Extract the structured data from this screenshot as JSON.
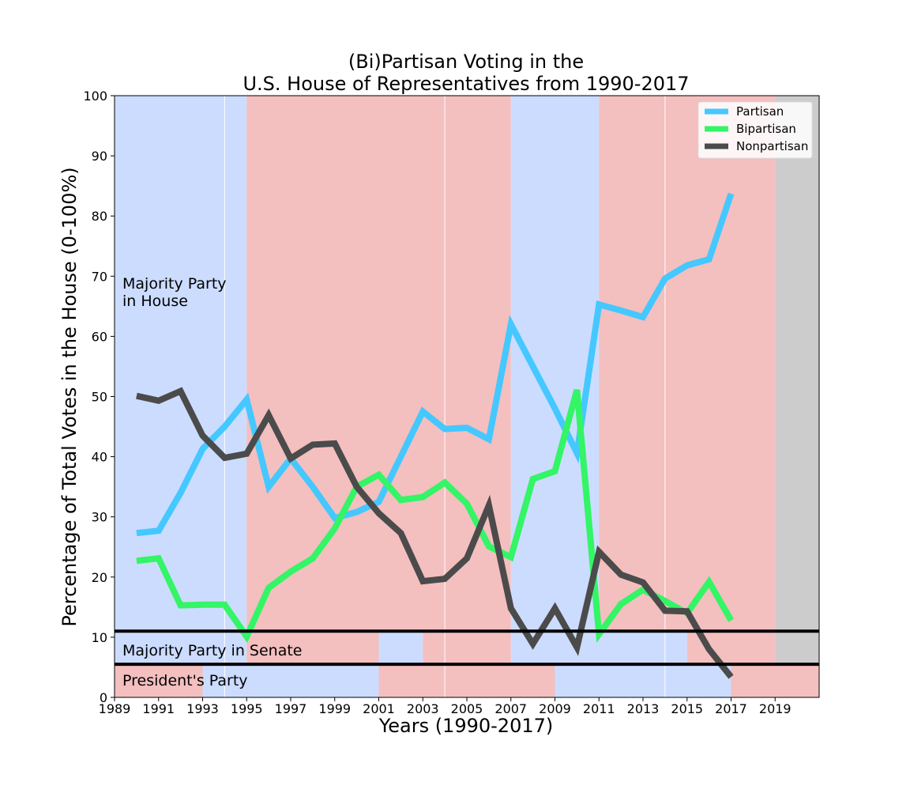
{
  "chart_data": {
    "type": "line",
    "title": [
      "(Bi)Partisan Voting in the",
      "U.S. House of Representatives from 1990-2017"
    ],
    "xlabel": "Years (1990-2017)",
    "ylabel": "Percentage of Total Votes in the House (0-100%)",
    "xlim": [
      1989,
      2021
    ],
    "ylim": [
      0,
      100
    ],
    "x_ticks": [
      1989,
      1991,
      1993,
      1995,
      1997,
      1999,
      2001,
      2003,
      2005,
      2007,
      2009,
      2011,
      2013,
      2015,
      2017,
      2019
    ],
    "y_ticks": [
      0,
      10,
      20,
      30,
      40,
      50,
      60,
      70,
      80,
      90,
      100
    ],
    "grid": false,
    "legend": {
      "position": "top-right"
    },
    "x": [
      1990,
      1991,
      1992,
      1993,
      1994,
      1995,
      1996,
      1997,
      1998,
      1999,
      2000,
      2001,
      2002,
      2003,
      2004,
      2005,
      2006,
      2007,
      2008,
      2009,
      2010,
      2011,
      2012,
      2013,
      2014,
      2015,
      2016,
      2017
    ],
    "series": [
      {
        "name": "Partisan",
        "color": "#44c8ff",
        "values": [
          27.3,
          27.7,
          34.0,
          41.3,
          45.0,
          49.5,
          35.0,
          39.7,
          35.0,
          29.8,
          30.8,
          32.5,
          40.0,
          47.5,
          44.6,
          44.8,
          42.9,
          62.0,
          55.0,
          48.0,
          40.6,
          65.3,
          64.3,
          63.2,
          69.6,
          71.8,
          72.8,
          83.7
        ]
      },
      {
        "name": "Bipartisan",
        "color": "#33f566",
        "values": [
          22.7,
          23.1,
          15.3,
          15.4,
          15.4,
          10.1,
          18.2,
          20.9,
          23.1,
          28.1,
          35.0,
          37.0,
          32.8,
          33.3,
          35.7,
          32.2,
          25.1,
          23.3,
          36.3,
          37.6,
          51.1,
          10.5,
          15.5,
          17.9,
          16.0,
          14.0,
          19.2,
          12.8
        ]
      },
      {
        "name": "Nonpartisan",
        "color": "#4b4b4b",
        "values": [
          50.1,
          49.3,
          50.9,
          43.5,
          39.8,
          40.5,
          46.9,
          39.7,
          42.0,
          42.2,
          35.0,
          30.6,
          27.3,
          19.3,
          19.7,
          23.1,
          31.9,
          14.8,
          8.9,
          14.8,
          8.3,
          24.2,
          20.4,
          19.1,
          14.4,
          14.3,
          8.0,
          3.4
        ]
      }
    ],
    "annotations": {
      "house_label": [
        "Majority Party",
        "in House"
      ],
      "senate_label": "Majority Party in Senate",
      "president_label": "President's Party"
    },
    "party_colors": {
      "D": "#ccdcff",
      "R": "#f4bfbf",
      "none": "#cccccc"
    },
    "bands": {
      "house": [
        {
          "start": 1989,
          "end": 1995,
          "party": "D"
        },
        {
          "start": 1995,
          "end": 2007,
          "party": "R"
        },
        {
          "start": 2007,
          "end": 2011,
          "party": "D"
        },
        {
          "start": 2011,
          "end": 2019,
          "party": "R"
        },
        {
          "start": 2019,
          "end": 2021,
          "party": "none"
        }
      ],
      "senate": [
        {
          "start": 1989,
          "end": 1995,
          "party": "D"
        },
        {
          "start": 1995,
          "end": 2001,
          "party": "R"
        },
        {
          "start": 2001,
          "end": 2003,
          "party": "D"
        },
        {
          "start": 2003,
          "end": 2007,
          "party": "R"
        },
        {
          "start": 2007,
          "end": 2015,
          "party": "D"
        },
        {
          "start": 2015,
          "end": 2019,
          "party": "R"
        },
        {
          "start": 2019,
          "end": 2021,
          "party": "none"
        }
      ],
      "president": [
        {
          "start": 1989,
          "end": 1993,
          "party": "R"
        },
        {
          "start": 1993,
          "end": 2001,
          "party": "D"
        },
        {
          "start": 2001,
          "end": 2009,
          "party": "R"
        },
        {
          "start": 2009,
          "end": 2017,
          "party": "D"
        },
        {
          "start": 2017,
          "end": 2021,
          "party": "R"
        }
      ],
      "house_split_top": 11,
      "president_split_top": 5.5,
      "divider_years": [
        1994,
        2004,
        2014
      ]
    }
  }
}
